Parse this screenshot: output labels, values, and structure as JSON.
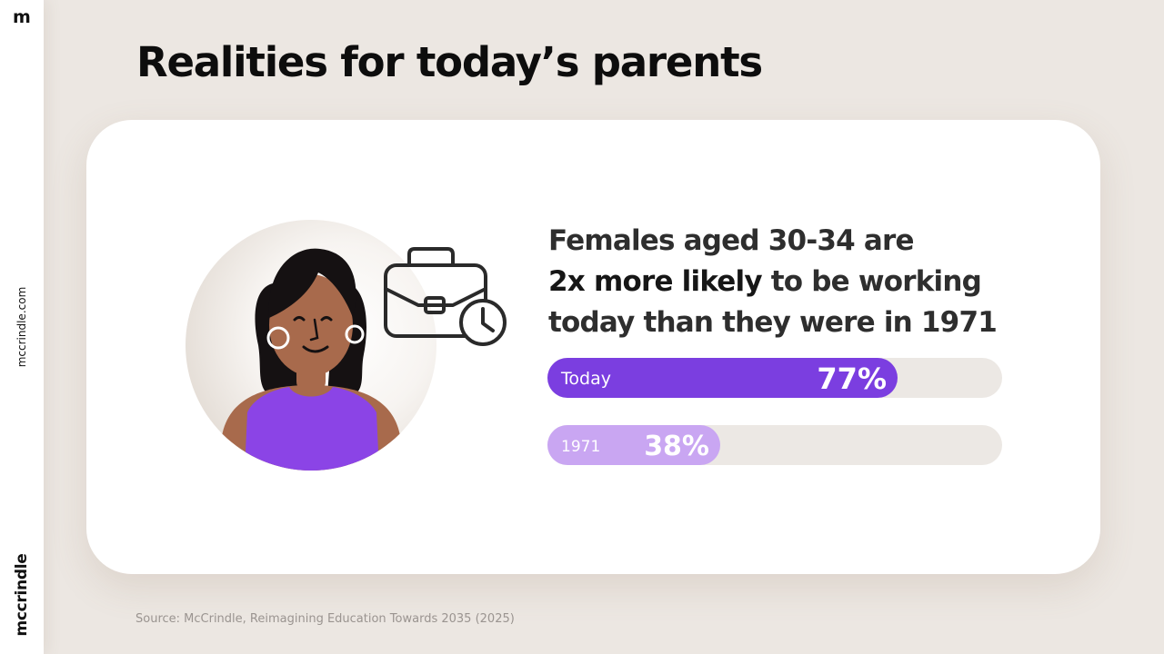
{
  "brand": {
    "logo_letter": "m",
    "website": "mccrindle.com",
    "name": "mccrindle"
  },
  "slide": {
    "title": "Realities for today’s parents",
    "headline_line1": "Females aged 30-34 are",
    "headline_bold": "2x more likely",
    "headline_line2_rest": " to be working",
    "headline_line3": "today than they were in 1971",
    "source": "Source: McCrindle, Reimagining Education Towards 2035 (2025)"
  },
  "icons": [
    "person-illustration",
    "briefcase-icon",
    "clock-icon"
  ],
  "colors": {
    "accent_purple": "#7b3ee0",
    "light_purple": "#c9a6f2",
    "track": "#ece8e4",
    "background": "#ece7e2"
  },
  "chart_data": {
    "type": "bar",
    "orientation": "horizontal",
    "categories": [
      "Today",
      "1971"
    ],
    "values": [
      77,
      38
    ],
    "value_labels": [
      "77%",
      "38%"
    ],
    "xlim": [
      0,
      100
    ],
    "unit": "%",
    "grid": false
  }
}
